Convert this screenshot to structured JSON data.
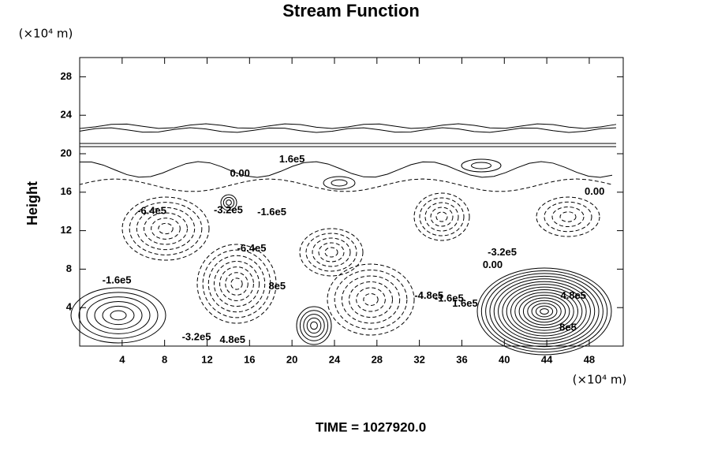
{
  "chart_data": {
    "type": "contour",
    "title": "Stream Function",
    "y_unit": "(×10⁴ m)",
    "x_unit": "(×10⁴ m)",
    "ylabel": "Height",
    "footer": "TIME = 1027920.0",
    "xlim": [
      0,
      51.2
    ],
    "ylim": [
      0,
      30
    ],
    "xticks": [
      4,
      8,
      12,
      16,
      20,
      24,
      28,
      32,
      36,
      40,
      44,
      48
    ],
    "yticks": [
      4,
      8,
      12,
      16,
      20,
      24,
      28
    ],
    "contour_labels": [
      {
        "text": "1.6e5",
        "x": 20.0,
        "y": 19.4
      },
      {
        "text": "0.00",
        "x": 15.1,
        "y": 17.9
      },
      {
        "text": "0.00",
        "x": 48.5,
        "y": 16.0
      },
      {
        "text": "-6.4e5",
        "x": 6.8,
        "y": 14.0
      },
      {
        "text": "-3.2e5",
        "x": 14.0,
        "y": 14.1
      },
      {
        "text": "-1.6e5",
        "x": 18.1,
        "y": 13.9
      },
      {
        "text": "-6.4e5",
        "x": 16.2,
        "y": 10.1
      },
      {
        "text": "-3.2e5",
        "x": 39.8,
        "y": 9.7
      },
      {
        "text": "0.00",
        "x": 38.9,
        "y": 8.4
      },
      {
        "text": "-1.6e5",
        "x": 3.5,
        "y": 6.8
      },
      {
        "text": "8e5",
        "x": 18.6,
        "y": 6.2
      },
      {
        "text": "-4.8e5",
        "x": 32.9,
        "y": 5.2
      },
      {
        "text": "-1.6e5",
        "x": 34.8,
        "y": 4.9
      },
      {
        "text": "1.6e5",
        "x": 36.3,
        "y": 4.4
      },
      {
        "text": "4.8e5",
        "x": 46.5,
        "y": 5.2
      },
      {
        "text": "-3.2e5",
        "x": 11.0,
        "y": 0.9
      },
      {
        "text": "4.8e5",
        "x": 14.4,
        "y": 0.6
      },
      {
        "text": "8e5",
        "x": 46.0,
        "y": 1.9
      }
    ]
  }
}
